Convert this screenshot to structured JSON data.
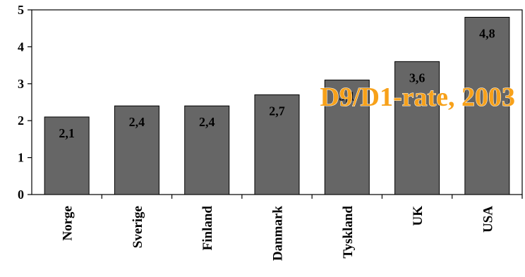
{
  "chart_data": {
    "type": "bar",
    "title": "D9/D1-rate, 2003",
    "categories": [
      "Norge",
      "Sverige",
      "Finland",
      "Danmark",
      "Tyskland",
      "UK",
      "USA"
    ],
    "values": [
      2.1,
      2.4,
      2.4,
      2.7,
      3.1,
      3.6,
      4.8
    ],
    "value_labels": [
      "2,1",
      "2,4",
      "2,4",
      "2,7",
      "3,1",
      "3,6",
      "4,8"
    ],
    "y_ticks": [
      "0",
      "1",
      "2",
      "3",
      "4",
      "5"
    ],
    "ylim": [
      0,
      5
    ],
    "xlabel": "",
    "ylabel": "",
    "grid": false,
    "bar_color": "#666666",
    "bar_edge_color": "#000000",
    "title_color": "#f7a11a"
  }
}
